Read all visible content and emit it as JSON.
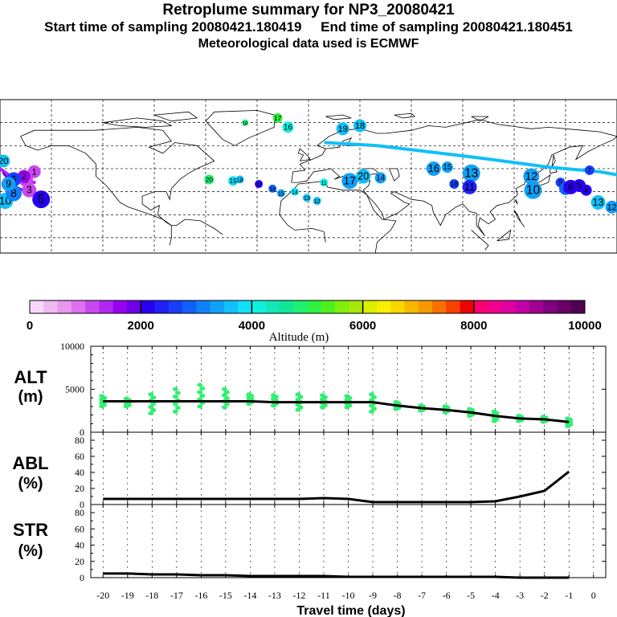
{
  "header": {
    "title": "Retroplume summary for NP3_20080421",
    "start_label": "Start time of sampling 20080421.180419",
    "end_label": "End time of sampling 20080421.180451",
    "met_label": "Meteorological data used is ECMWF"
  },
  "colorbar": {
    "colors": [
      "#f8d8f8",
      "#f0b8f0",
      "#e898f0",
      "#e070f0",
      "#c848f0",
      "#b028f0",
      "#9800f0",
      "#7000e8",
      "#2800f0",
      "#2020f8",
      "#1840f8",
      "#1060f8",
      "#1080f8",
      "#10a0f8",
      "#10c0f8",
      "#10e0f8",
      "#10f0e0",
      "#10e8b8",
      "#10e898",
      "#20f070",
      "#30f040",
      "#50f020",
      "#80f010",
      "#a8e808",
      "#d8f000",
      "#f8f000",
      "#f8d800",
      "#f8b800",
      "#f89800",
      "#f87000",
      "#f84000",
      "#f00000",
      "#f80070",
      "#f00090",
      "#e000a0",
      "#c000a8",
      "#a00090",
      "#800080",
      "#680068",
      "#500050"
    ],
    "tick_labels": [
      "0",
      "2000",
      "4000",
      "6000",
      "8000",
      "10000"
    ],
    "label": "Altitude (m)"
  },
  "map_points": [
    {
      "label": "20",
      "lon": -178,
      "lat": 50,
      "alt": 3600,
      "size": 8
    },
    {
      "label": "10",
      "lon": -177,
      "lat": 24,
      "alt": 3600,
      "size": 10
    },
    {
      "label": "8",
      "lon": -172,
      "lat": 29,
      "alt": 3000,
      "size": 10
    },
    {
      "label": "3",
      "lon": -165,
      "lat": 38,
      "alt": 1200,
      "size": 9
    },
    {
      "label": "1",
      "lon": -160,
      "lat": 43,
      "alt": 1000,
      "size": 8
    },
    {
      "label": "2",
      "lon": -166,
      "lat": 40,
      "alt": 1500,
      "size": 8
    },
    {
      "label": "6",
      "lon": -172,
      "lat": 38,
      "alt": 2600,
      "size": 9
    },
    {
      "label": "9",
      "lon": -175,
      "lat": 35,
      "alt": 3300,
      "size": 9
    },
    {
      "label": "3",
      "lon": -163,
      "lat": 31,
      "alt": 1100,
      "size": 9
    },
    {
      "label": "5",
      "lon": -156,
      "lat": 25,
      "alt": 2200,
      "size": 11
    },
    {
      "label": "17",
      "lon": -18,
      "lat": 78,
      "alt": 5000,
      "size": 6
    },
    {
      "label": "16",
      "lon": -12,
      "lat": 72,
      "alt": 4200,
      "size": 7
    },
    {
      "label": "18",
      "lon": -37,
      "lat": 75,
      "alt": 4800,
      "size": 4
    },
    {
      "label": "20",
      "lon": -58,
      "lat": 38,
      "alt": 4800,
      "size": 6
    },
    {
      "label": "19",
      "lon": -44,
      "lat": 37,
      "alt": 3900,
      "size": 6
    },
    {
      "label": "18",
      "lon": -40,
      "lat": 38,
      "alt": 3600,
      "size": 5
    },
    {
      "label": "17",
      "lon": -29,
      "lat": 35,
      "alt": 2200,
      "size": 5
    },
    {
      "label": "16",
      "lon": -21,
      "lat": 32,
      "alt": 2800,
      "size": 5
    },
    {
      "label": "15",
      "lon": -16,
      "lat": 29,
      "alt": 3400,
      "size": 5
    },
    {
      "label": "14",
      "lon": -8,
      "lat": 30,
      "alt": 3800,
      "size": 5
    },
    {
      "label": "13",
      "lon": -1,
      "lat": 26,
      "alt": 3700,
      "size": 5
    },
    {
      "label": "12",
      "lon": 5,
      "lat": 24,
      "alt": 3700,
      "size": 5
    },
    {
      "label": "11",
      "lon": 9,
      "lat": 36,
      "alt": 4000,
      "size": 5
    },
    {
      "label": "17",
      "lon": 24,
      "lat": 37,
      "alt": 3300,
      "size": 10
    },
    {
      "label": "20",
      "lon": 32,
      "lat": 40,
      "alt": 3600,
      "size": 9
    },
    {
      "label": "14",
      "lon": 42,
      "lat": 39,
      "alt": 3400,
      "size": 7
    },
    {
      "label": "19",
      "lon": 20,
      "lat": 71,
      "alt": 3500,
      "size": 8
    },
    {
      "label": "18",
      "lon": 30,
      "lat": 73,
      "alt": 3600,
      "size": 8
    },
    {
      "label": "16",
      "lon": 73,
      "lat": 45,
      "alt": 3300,
      "size": 9
    },
    {
      "label": "15",
      "lon": 81,
      "lat": 46,
      "alt": 3400,
      "size": 7
    },
    {
      "label": "13",
      "lon": 95,
      "lat": 42,
      "alt": 3300,
      "size": 11
    },
    {
      "label": "18",
      "lon": 85,
      "lat": 35,
      "alt": 2500,
      "size": 6
    },
    {
      "label": "11",
      "lon": 94,
      "lat": 33,
      "alt": 2300,
      "size": 9
    },
    {
      "label": "12",
      "lon": 130,
      "lat": 40,
      "alt": 3400,
      "size": 10
    },
    {
      "label": "10",
      "lon": 131,
      "lat": 31,
      "alt": 3300,
      "size": 11
    },
    {
      "label": "9",
      "lon": 147,
      "lat": 36,
      "alt": 2600,
      "size": 6
    },
    {
      "label": "8",
      "lon": 150,
      "lat": 32,
      "alt": 2800,
      "size": 8
    },
    {
      "label": "6",
      "lon": 153,
      "lat": 33,
      "alt": 2100,
      "size": 9
    },
    {
      "label": "5",
      "lon": 158,
      "lat": 34,
      "alt": 2200,
      "size": 8
    },
    {
      "label": "4",
      "lon": 162,
      "lat": 31,
      "alt": 2000,
      "size": 7
    },
    {
      "label": "7",
      "lon": 164,
      "lat": 44,
      "alt": 2500,
      "size": 6
    },
    {
      "label": "13",
      "lon": 169,
      "lat": 23,
      "alt": 3500,
      "size": 9
    },
    {
      "label": "12",
      "lon": 177,
      "lat": 20,
      "alt": 3400,
      "size": 8
    }
  ],
  "chart_data": [
    {
      "type": "scatter",
      "title": "ALT",
      "ylabel": "(m)",
      "x": [
        -20,
        -19,
        -18,
        -17,
        -16,
        -15,
        -14,
        -13,
        -12,
        -11,
        -10,
        -9,
        -8,
        -7,
        -6,
        -5,
        -4,
        -3,
        -2,
        -1
      ],
      "median": [
        3600,
        3600,
        3600,
        3600,
        3600,
        3600,
        3600,
        3500,
        3500,
        3500,
        3500,
        3500,
        3100,
        2800,
        2600,
        2300,
        1900,
        1600,
        1500,
        1200
      ],
      "scatter_min": [
        3000,
        3000,
        2200,
        2400,
        3000,
        2900,
        3300,
        3100,
        2600,
        2900,
        2900,
        2400,
        2700,
        2500,
        2300,
        1900,
        1300,
        1300,
        1200,
        700
      ],
      "scatter_max": [
        4200,
        3900,
        4400,
        5000,
        5500,
        5000,
        4400,
        4300,
        4400,
        4300,
        4200,
        4400,
        3500,
        3100,
        3000,
        2700,
        2400,
        1900,
        1800,
        1600
      ],
      "ylim": [
        0,
        10000
      ],
      "yticks": [
        "0",
        "5000",
        "10000"
      ]
    },
    {
      "type": "line",
      "title": "ABL",
      "ylabel": "(%)",
      "x": [
        -20,
        -19,
        -18,
        -17,
        -16,
        -15,
        -14,
        -13,
        -12,
        -11,
        -10,
        -9,
        -8,
        -7,
        -6,
        -5,
        -4,
        -3,
        -2,
        -1
      ],
      "values": [
        7,
        7,
        7,
        7,
        7,
        7,
        7,
        7,
        7,
        8,
        7,
        3,
        3,
        3,
        3,
        3,
        4,
        10,
        17,
        41
      ],
      "ylim": [
        0,
        90
      ],
      "yticks": [
        "0",
        "20",
        "40",
        "60",
        "80"
      ]
    },
    {
      "type": "line",
      "title": "STR",
      "ylabel": "(%)",
      "x": [
        -20,
        -19,
        -18,
        -17,
        -16,
        -15,
        -14,
        -13,
        -12,
        -11,
        -10,
        -9,
        -8,
        -7,
        -6,
        -5,
        -4,
        -3,
        -2,
        -1
      ],
      "values": [
        5,
        5,
        4,
        4,
        3,
        3,
        2,
        2,
        2,
        2,
        1,
        1,
        1,
        1,
        1,
        1,
        1,
        0,
        0,
        0
      ],
      "ylim": [
        0,
        90
      ],
      "yticks": [
        "0",
        "20",
        "40",
        "60",
        "80"
      ]
    }
  ],
  "xaxis": {
    "ticks": [
      "-20",
      "-19",
      "-18",
      "-17",
      "-16",
      "-15",
      "-14",
      "-13",
      "-12",
      "-11",
      "-10",
      "-9",
      "-8",
      "-7",
      "-6",
      "-5",
      "-4",
      "-3",
      "-2",
      "-1",
      "0"
    ],
    "xlabel": "Travel time (days)"
  }
}
